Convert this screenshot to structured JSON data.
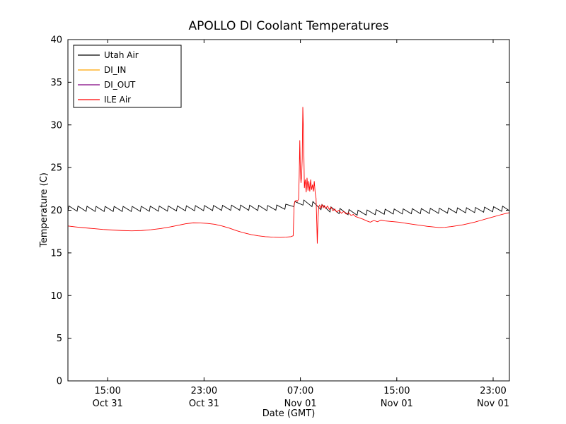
{
  "chart_data": {
    "type": "line",
    "title": "APOLLO DI Coolant Temperatures",
    "xlabel": "Date (GMT)",
    "ylabel": "Temperature (C)",
    "x_unit": "hours since Oct 31 00:00 GMT",
    "xlim": [
      11.7,
      48.35
    ],
    "ylim": [
      0,
      40
    ],
    "grid": false,
    "legend_position": "upper left",
    "yticks": [
      {
        "value": 0,
        "label": "0"
      },
      {
        "value": 5,
        "label": "5"
      },
      {
        "value": 10,
        "label": "10"
      },
      {
        "value": 15,
        "label": "15"
      },
      {
        "value": 20,
        "label": "20"
      },
      {
        "value": 25,
        "label": "25"
      },
      {
        "value": 30,
        "label": "30"
      },
      {
        "value": 35,
        "label": "35"
      },
      {
        "value": 40,
        "label": "40"
      }
    ],
    "xticks": [
      {
        "value": 15,
        "time": "15:00",
        "date": "Oct 31"
      },
      {
        "value": 23,
        "time": "23:00",
        "date": "Oct 31"
      },
      {
        "value": 31,
        "time": "07:00",
        "date": "Nov 01"
      },
      {
        "value": 39,
        "time": "15:00",
        "date": "Nov 01"
      },
      {
        "value": 47,
        "time": "23:00",
        "date": "Nov 01"
      }
    ],
    "series": [
      {
        "name": "Utah Air",
        "color": "#000000",
        "type": "sawtooth",
        "period": 0.75,
        "amplitude": 0.6,
        "rise_fraction": 0.1,
        "base": [
          [
            11.71,
            19.9
          ],
          [
            14,
            19.85
          ],
          [
            17,
            19.85
          ],
          [
            20,
            19.9
          ],
          [
            23,
            19.95
          ],
          [
            26,
            20.0
          ],
          [
            28.5,
            19.95
          ],
          [
            30.0,
            20.15
          ],
          [
            30.6,
            20.5
          ],
          [
            31.2,
            20.6
          ],
          [
            31.8,
            20.5
          ],
          [
            32.4,
            20.2
          ],
          [
            33.0,
            19.95
          ],
          [
            33.6,
            19.75
          ],
          [
            34.2,
            19.6
          ],
          [
            34.8,
            19.5
          ],
          [
            35.4,
            19.42
          ],
          [
            36.0,
            19.4
          ],
          [
            36.8,
            19.45
          ],
          [
            37.6,
            19.5
          ],
          [
            38.4,
            19.55
          ],
          [
            39.2,
            19.55
          ],
          [
            40.0,
            19.58
          ],
          [
            41.0,
            19.6
          ],
          [
            42.0,
            19.62
          ],
          [
            43.0,
            19.65
          ],
          [
            44.0,
            19.68
          ],
          [
            45.0,
            19.7
          ],
          [
            46.0,
            19.75
          ],
          [
            47.0,
            19.82
          ],
          [
            48.0,
            19.9
          ],
          [
            48.35,
            19.95
          ]
        ]
      },
      {
        "name": "DI_IN",
        "color": "#ffa500",
        "type": "line",
        "points": []
      },
      {
        "name": "DI_OUT",
        "color": "#800080",
        "type": "line",
        "points": []
      },
      {
        "name": "ILE Air",
        "color": "#ff0000",
        "type": "line",
        "points": [
          [
            11.71,
            18.15
          ],
          [
            12.3,
            18.05
          ],
          [
            13.0,
            17.95
          ],
          [
            13.8,
            17.85
          ],
          [
            14.6,
            17.75
          ],
          [
            15.4,
            17.68
          ],
          [
            16.2,
            17.62
          ],
          [
            17.0,
            17.58
          ],
          [
            17.8,
            17.62
          ],
          [
            18.6,
            17.72
          ],
          [
            19.4,
            17.85
          ],
          [
            20.2,
            18.05
          ],
          [
            20.9,
            18.25
          ],
          [
            21.5,
            18.42
          ],
          [
            22.1,
            18.52
          ],
          [
            22.7,
            18.5
          ],
          [
            23.3,
            18.45
          ],
          [
            23.9,
            18.35
          ],
          [
            24.5,
            18.15
          ],
          [
            25.1,
            17.9
          ],
          [
            25.7,
            17.6
          ],
          [
            26.3,
            17.35
          ],
          [
            26.9,
            17.15
          ],
          [
            27.5,
            17.0
          ],
          [
            28.1,
            16.9
          ],
          [
            28.7,
            16.85
          ],
          [
            29.3,
            16.82
          ],
          [
            29.8,
            16.85
          ],
          [
            30.2,
            16.9
          ],
          [
            30.4,
            17.0
          ],
          [
            30.48,
            20.7
          ],
          [
            30.55,
            21.05
          ],
          [
            30.65,
            21.15
          ],
          [
            30.75,
            21.05
          ],
          [
            30.85,
            21.3
          ],
          [
            30.9,
            24.0
          ],
          [
            30.95,
            28.2
          ],
          [
            31.0,
            24.5
          ],
          [
            31.05,
            23.2
          ],
          [
            31.1,
            24.0
          ],
          [
            31.15,
            26.0
          ],
          [
            31.2,
            32.1
          ],
          [
            31.28,
            27.5
          ],
          [
            31.33,
            22.6
          ],
          [
            31.4,
            23.6
          ],
          [
            31.48,
            22.1
          ],
          [
            31.55,
            23.8
          ],
          [
            31.63,
            22.3
          ],
          [
            31.7,
            23.4
          ],
          [
            31.78,
            22.2
          ],
          [
            31.85,
            23.6
          ],
          [
            31.93,
            22.4
          ],
          [
            32.0,
            23.0
          ],
          [
            32.08,
            22.2
          ],
          [
            32.15,
            23.4
          ],
          [
            32.23,
            22.0
          ],
          [
            32.3,
            21.4
          ],
          [
            32.36,
            18.5
          ],
          [
            32.4,
            16.1
          ],
          [
            32.46,
            19.0
          ],
          [
            32.52,
            20.4
          ],
          [
            32.6,
            20.6
          ],
          [
            32.7,
            20.25
          ],
          [
            32.8,
            20.65
          ],
          [
            32.9,
            20.3
          ],
          [
            33.0,
            20.55
          ],
          [
            33.1,
            20.2
          ],
          [
            33.25,
            20.5
          ],
          [
            33.4,
            20.1
          ],
          [
            33.55,
            20.35
          ],
          [
            33.7,
            19.95
          ],
          [
            33.85,
            20.15
          ],
          [
            34.0,
            19.8
          ],
          [
            34.2,
            20.0
          ],
          [
            34.4,
            19.65
          ],
          [
            34.6,
            19.85
          ],
          [
            34.8,
            19.55
          ],
          [
            35.0,
            19.7
          ],
          [
            35.2,
            19.4
          ],
          [
            35.4,
            19.5
          ],
          [
            35.6,
            19.25
          ],
          [
            35.9,
            19.1
          ],
          [
            36.2,
            18.95
          ],
          [
            36.5,
            18.75
          ],
          [
            36.8,
            18.6
          ],
          [
            37.1,
            18.8
          ],
          [
            37.4,
            18.65
          ],
          [
            37.7,
            18.85
          ],
          [
            38.0,
            18.75
          ],
          [
            38.4,
            18.7
          ],
          [
            38.8,
            18.65
          ],
          [
            39.2,
            18.6
          ],
          [
            39.6,
            18.5
          ],
          [
            40.0,
            18.42
          ],
          [
            40.5,
            18.32
          ],
          [
            41.0,
            18.22
          ],
          [
            41.5,
            18.12
          ],
          [
            42.0,
            18.05
          ],
          [
            42.5,
            17.98
          ],
          [
            43.0,
            18.0
          ],
          [
            43.5,
            18.08
          ],
          [
            44.0,
            18.18
          ],
          [
            44.5,
            18.3
          ],
          [
            45.0,
            18.45
          ],
          [
            45.5,
            18.62
          ],
          [
            46.0,
            18.82
          ],
          [
            46.5,
            19.02
          ],
          [
            47.0,
            19.22
          ],
          [
            47.5,
            19.42
          ],
          [
            48.0,
            19.6
          ],
          [
            48.35,
            19.72
          ]
        ]
      }
    ]
  }
}
